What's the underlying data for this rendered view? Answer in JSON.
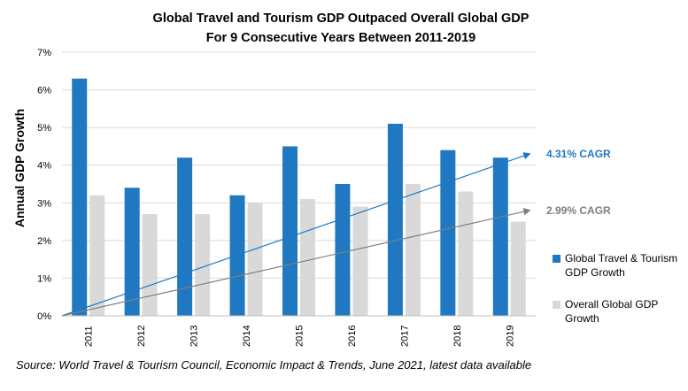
{
  "chart_data": {
    "type": "bar",
    "title_line1": "Global Travel and Tourism GDP Outpaced Overall Global GDP",
    "title_line2": "For 9 Consecutive Years Between 2011-2019",
    "ylabel": "Annual GDP Growth",
    "xlabel": "",
    "ylim": [
      0,
      7
    ],
    "yticks": [
      "0%",
      "1%",
      "2%",
      "3%",
      "4%",
      "5%",
      "6%",
      "7%"
    ],
    "grid": true,
    "categories": [
      "2011",
      "2012",
      "2013",
      "2014",
      "2015",
      "2016",
      "2017",
      "2018",
      "2019"
    ],
    "series": [
      {
        "name": "Global Travel & Tourism GDP Growth",
        "color": "#1f78c1",
        "values": [
          6.3,
          3.4,
          4.2,
          3.2,
          4.5,
          3.5,
          5.1,
          4.4,
          4.2
        ]
      },
      {
        "name": "Overall Global GDP Growth",
        "color": "#d9d9d9",
        "values": [
          3.2,
          2.7,
          2.7,
          3.0,
          3.1,
          2.9,
          3.5,
          3.3,
          2.5
        ]
      }
    ],
    "annotations": [
      {
        "text": "4.31% CAGR",
        "color": "#1f78c1",
        "y_start": 0.0,
        "y_end": 4.3
      },
      {
        "text": "2.99% CAGR",
        "color": "#7f7f7f",
        "y_start": 0.0,
        "y_end": 2.8
      }
    ],
    "legend_position": "right"
  },
  "source": "Source: World Travel & Tourism Council, Economic Impact & Trends, June 2021,  latest data available"
}
